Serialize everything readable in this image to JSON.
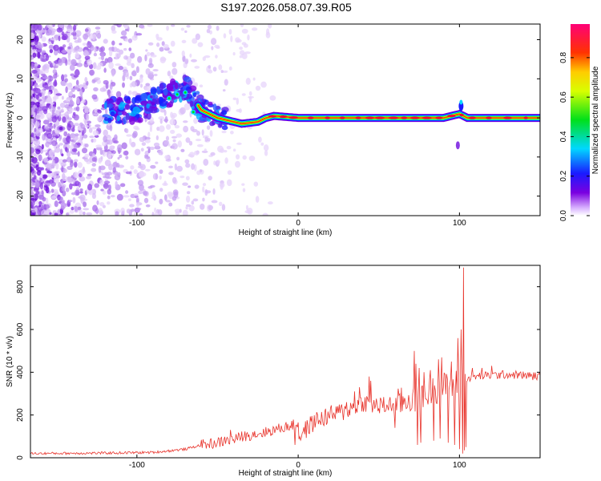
{
  "page_title": "S197.2026.058.07.39.R05",
  "colors": {
    "snr_line": "#e8342c",
    "frame": "#000000",
    "background": "#ffffff"
  },
  "chart_data": [
    {
      "type": "heatmap",
      "title": "S197.2026.058.07.39.R05",
      "xlabel": "Height of straight line (km)",
      "ylabel": "Frequency (Hz)",
      "xlim": [
        -166,
        150
      ],
      "ylim": [
        -25,
        24
      ],
      "x_ticks": [
        -100,
        0,
        100
      ],
      "y_ticks": [
        -20,
        -10,
        0,
        10,
        20
      ],
      "colorbar": {
        "label": "Normalized spectral amplitude",
        "range": [
          0,
          0.97
        ],
        "ticks": [
          0.0,
          0.2,
          0.4,
          0.6,
          0.8
        ],
        "colormap": "rainbow (violet, blue, cyan, green, yellow, red, magenta)"
      },
      "features": {
        "ridge_center_hz": [
          [
            -100,
            2
          ],
          [
            -85,
            5
          ],
          [
            -70,
            8
          ],
          [
            -60,
            2
          ],
          [
            -50,
            0
          ],
          [
            -35,
            -1.5
          ],
          [
            -25,
            -1
          ],
          [
            -20,
            0
          ],
          [
            -15,
            0.5
          ],
          [
            0,
            0
          ],
          [
            50,
            0
          ],
          [
            90,
            0
          ],
          [
            100,
            1
          ],
          [
            105,
            0
          ],
          [
            150,
            0
          ]
        ],
        "scatter_region_km": [
          -166,
          -40
        ],
        "high_amplitude_km": [
          -20,
          150
        ]
      }
    },
    {
      "type": "line",
      "xlabel": "Height of straight line (km)",
      "ylabel": "SNR (10 * v/v)",
      "xlim": [
        -166,
        150
      ],
      "ylim": [
        0,
        900
      ],
      "x_ticks": [
        -100,
        0,
        100
      ],
      "y_ticks": [
        0,
        200,
        400,
        600,
        800
      ],
      "series": [
        {
          "points": [
            [
              -166,
              20
            ],
            [
              -120,
              22
            ],
            [
              -90,
              25
            ],
            [
              -70,
              40
            ],
            [
              -60,
              60
            ],
            [
              -50,
              70
            ],
            [
              -45,
              80
            ],
            [
              -40,
              85
            ],
            [
              -35,
              100
            ],
            [
              -30,
              105
            ],
            [
              -20,
              120
            ],
            [
              -10,
              140
            ],
            [
              -5,
              150
            ],
            [
              0,
              160
            ],
            [
              0.5,
              100
            ],
            [
              10,
              170
            ],
            [
              20,
              200
            ],
            [
              30,
              220
            ],
            [
              40,
              260
            ],
            [
              50,
              240
            ],
            [
              60,
              250
            ],
            [
              70,
              280
            ],
            [
              75,
              260
            ],
            [
              80,
              300
            ],
            [
              85,
              320
            ],
            [
              90,
              330
            ],
            [
              95,
              340
            ],
            [
              100,
              360
            ],
            [
              103,
              380
            ],
            [
              105,
              370
            ],
            [
              110,
              380
            ],
            [
              120,
              385
            ],
            [
              130,
              390
            ],
            [
              140,
              385
            ],
            [
              150,
              380
            ]
          ],
          "spikes": [
            [
              -42,
              130
            ],
            [
              -28,
              120
            ],
            [
              30,
              260
            ],
            [
              35,
              310
            ],
            [
              38,
              330
            ],
            [
              44,
              380
            ],
            [
              45,
              360
            ],
            [
              66,
              280
            ],
            [
              72,
              500
            ],
            [
              73,
              440
            ],
            [
              75,
              420
            ],
            [
              78,
              400
            ],
            [
              82,
              410
            ],
            [
              87,
              460
            ],
            [
              89,
              470
            ],
            [
              95,
              450
            ],
            [
              99,
              560
            ],
            [
              101,
              600
            ],
            [
              102,
              780
            ],
            [
              102.5,
              890
            ],
            [
              104,
              600
            ],
            [
              108,
              420
            ],
            [
              114,
              420
            ],
            [
              120,
              430
            ]
          ],
          "dips": [
            [
              -2,
              60
            ],
            [
              60,
              140
            ],
            [
              74,
              60
            ],
            [
              76,
              70
            ],
            [
              84,
              80
            ],
            [
              88,
              90
            ],
            [
              93,
              70
            ],
            [
              97,
              60
            ],
            [
              100,
              40
            ],
            [
              102,
              20
            ],
            [
              103,
              35
            ],
            [
              104,
              50
            ]
          ]
        }
      ]
    }
  ]
}
